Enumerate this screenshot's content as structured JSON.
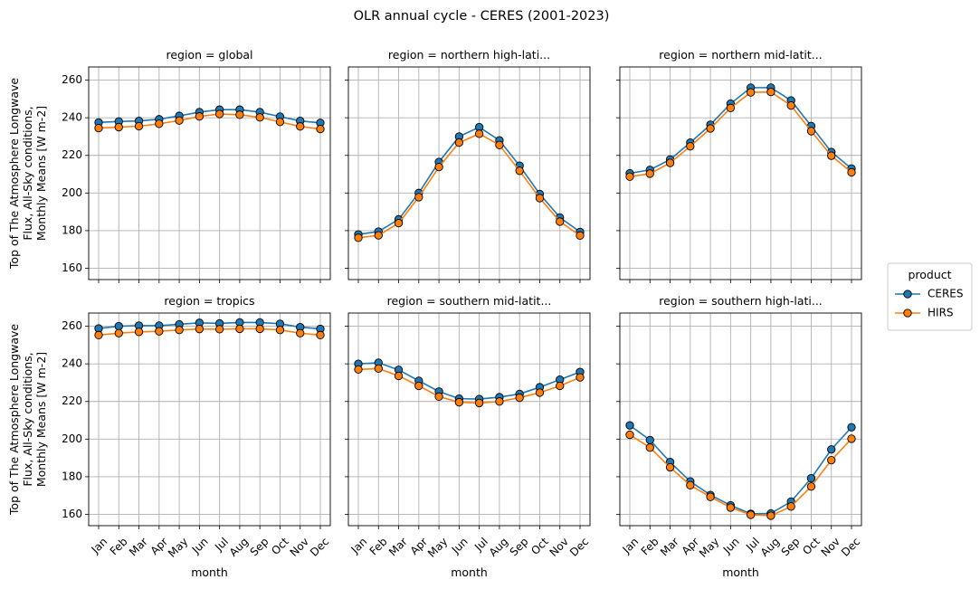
{
  "chart_data": {
    "type": "line",
    "title": "OLR annual cycle - CERES (2001-2023)",
    "xlabel": "month",
    "ylabel": [
      "Top of The Atmosphere Longwave",
      "Flux, All-Sky conditions,",
      "Monthly Means [W m-2]"
    ],
    "ylim": [
      154,
      267
    ],
    "yticks": [
      160,
      180,
      200,
      220,
      240,
      260
    ],
    "categories": [
      "Jan",
      "Feb",
      "Mar",
      "Apr",
      "May",
      "Jun",
      "Jul",
      "Aug",
      "Sep",
      "Oct",
      "Nov",
      "Dec"
    ],
    "legend": {
      "title": "product",
      "placement": "center-right",
      "entries": [
        {
          "name": "CERES",
          "color": "#1f77b4"
        },
        {
          "name": "HIRS",
          "color": "#ff7f0e"
        }
      ]
    },
    "marker_edge_color": "#000000",
    "grid_color": "#b0b0b0",
    "panels": [
      {
        "title": "region = global",
        "series": [
          {
            "name": "CERES",
            "values": [
              237.5,
              238,
              238.3,
              239.2,
              241,
              243,
              244.3,
              244.3,
              243,
              240.6,
              238.3,
              237.3
            ]
          },
          {
            "name": "HIRS",
            "values": [
              234.5,
              235,
              235.5,
              236.8,
              238.5,
              240.7,
              242,
              241.6,
              240.2,
              237.8,
              235.4,
              234
            ]
          }
        ]
      },
      {
        "title": "region = northern high-lati...",
        "series": [
          {
            "name": "CERES",
            "values": [
              178,
              179.5,
              186,
              200,
              216.5,
              230,
              235,
              228,
              214.5,
              199.5,
              187,
              179.3
            ]
          },
          {
            "name": "HIRS",
            "values": [
              176.2,
              177.5,
              184,
              197.8,
              213.8,
              226.8,
              231.5,
              225.5,
              211.8,
              197.3,
              184.8,
              177.4
            ]
          }
        ]
      },
      {
        "title": "region = northern mid-latit...",
        "series": [
          {
            "name": "CERES",
            "values": [
              210.5,
              212.3,
              217.8,
              226.8,
              236.3,
              247.5,
              256,
              256,
              249.2,
              235.6,
              221.8,
              213
            ]
          },
          {
            "name": "HIRS",
            "values": [
              208.7,
              210.3,
              216,
              224.8,
              234.3,
              245.2,
              253.5,
              253.7,
              246.5,
              232.9,
              219.8,
              211
            ]
          }
        ]
      },
      {
        "title": "region = tropics",
        "series": [
          {
            "name": "CERES",
            "values": [
              258.8,
              260,
              260.3,
              260.3,
              261,
              261.8,
              261.5,
              262,
              262,
              261.3,
              259.5,
              258.6
            ]
          },
          {
            "name": "HIRS",
            "values": [
              255.3,
              256.3,
              257,
              257.3,
              258,
              258.5,
              258.4,
              258.6,
              258.6,
              258,
              256.3,
              255.3
            ]
          }
        ]
      },
      {
        "title": "region = southern mid-latit...",
        "series": [
          {
            "name": "CERES",
            "values": [
              240,
              240.6,
              236.8,
              231,
              225.3,
              221.5,
              221.3,
              222.3,
              224,
              227.6,
              231.6,
              235.7
            ]
          },
          {
            "name": "HIRS",
            "values": [
              237,
              237.5,
              233.6,
              228.3,
              222.6,
              219.6,
              219.2,
              220,
              222,
              224.7,
              228.3,
              232.8
            ]
          }
        ]
      },
      {
        "title": "region = southern high-lati...",
        "series": [
          {
            "name": "CERES",
            "values": [
              207.3,
              199.5,
              187.8,
              177.5,
              170.3,
              164.8,
              160.3,
              160.5,
              166.8,
              179.2,
              194.5,
              206.3
            ]
          },
          {
            "name": "HIRS",
            "values": [
              202.3,
              195.5,
              185,
              175.5,
              169.3,
              163.6,
              159.8,
              159.3,
              164.2,
              174.8,
              188.8,
              200.2
            ]
          }
        ]
      }
    ]
  }
}
